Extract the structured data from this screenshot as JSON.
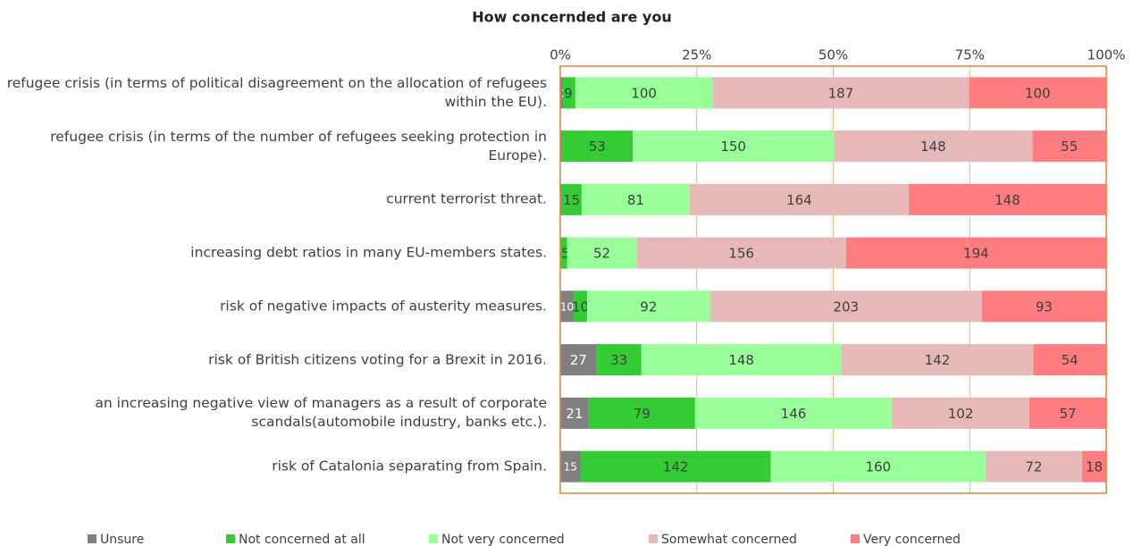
{
  "chart_data": {
    "type": "stacked_bar_100",
    "orientation": "horizontal",
    "title": "How concernded are you",
    "categories": [
      "refugee crisis (in terms of political disagreement on the allocation of refugees within the EU).",
      "refugee crisis (in terms of the number of refugees seeking protection in Europe).",
      "current terrorist threat.",
      "increasing debt ratios in many EU-members states.",
      "risk of negative impacts of austerity measures.",
      "risk of British citizens voting for a Brexit in 2016.",
      "an increasing negative view of managers as a result of corporate scandals(automobile industry, banks etc.).",
      "risk of Catalonia separating from Spain."
    ],
    "series": [
      {
        "name": "Unsure",
        "color": "#808080",
        "values": [
          2,
          1,
          1,
          0,
          10,
          27,
          21,
          15
        ]
      },
      {
        "name": "Not concerned at all",
        "color": "#33cc33",
        "values": [
          9,
          53,
          15,
          5,
          10,
          33,
          79,
          142
        ]
      },
      {
        "name": "Not very concerned",
        "color": "#99ff99",
        "values": [
          100,
          150,
          81,
          52,
          92,
          148,
          146,
          160
        ]
      },
      {
        "name": "Somewhat concerned",
        "color": "#e6b8b7",
        "values": [
          187,
          148,
          164,
          156,
          203,
          142,
          102,
          72
        ]
      },
      {
        "name": "Very concerned",
        "color": "#ff7c80",
        "values": [
          100,
          55,
          148,
          194,
          93,
          54,
          57,
          18
        ]
      }
    ],
    "xlim": [
      0,
      100
    ],
    "xticks": [
      {
        "value": 0,
        "label": "0%"
      },
      {
        "value": 25,
        "label": "25%"
      },
      {
        "value": 50,
        "label": "50%"
      },
      {
        "value": 75,
        "label": "75%"
      },
      {
        "value": 100,
        "label": "100%"
      }
    ],
    "grid": true,
    "legend": "bottom"
  }
}
